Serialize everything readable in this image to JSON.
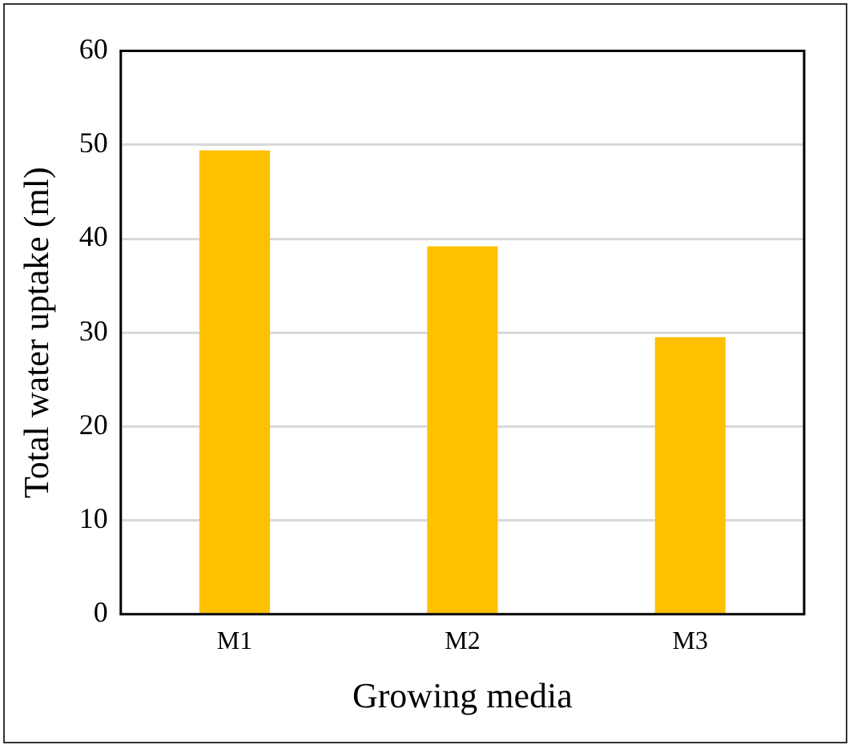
{
  "chart_data": {
    "type": "bar",
    "xlabel": "Growing media",
    "ylabel": "Total water uptake (ml)",
    "categories": [
      "M1",
      "M2",
      "M3"
    ],
    "values": [
      49.4,
      39.2,
      29.5
    ],
    "color": "#ffc000",
    "ylim": [
      0,
      60
    ],
    "yticks": [
      0,
      10,
      20,
      30,
      40,
      50,
      60
    ],
    "grid": "y",
    "legend": false
  }
}
